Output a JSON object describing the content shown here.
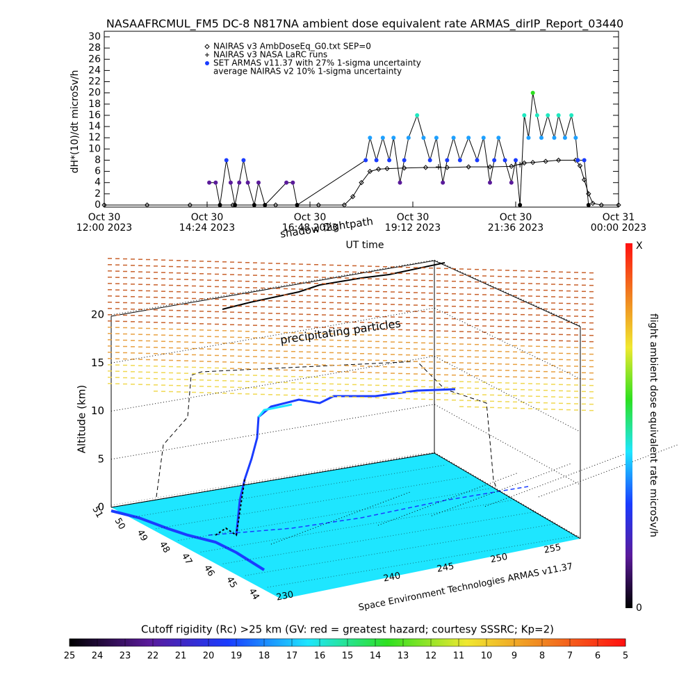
{
  "title": "NASAAFRCMUL_FM5 DC-8   N817NA ambient dose equivalent rate ARMAS_dirIP_Report_03440",
  "chart_data": [
    {
      "type": "scatter",
      "ylabel": "dH*(10)/dt microSv/h",
      "xlabel": "UT time",
      "xlim": [
        0,
        12
      ],
      "xticks": [
        {
          "value": 0,
          "label": "Oct 30\n12:00 2023"
        },
        {
          "value": 2.4,
          "label": "Oct 30\n14:24 2023"
        },
        {
          "value": 4.8,
          "label": "Oct 30\n16:48 2023"
        },
        {
          "value": 7.2,
          "label": "Oct 30\n19:12 2023"
        },
        {
          "value": 9.6,
          "label": "Oct 30\n21:36 2023"
        },
        {
          "value": 12,
          "label": "Oct 31\n00:00 2023"
        }
      ],
      "ylim": [
        0,
        30
      ],
      "yticks": [
        0,
        2,
        4,
        6,
        8,
        10,
        12,
        14,
        16,
        18,
        20,
        22,
        24,
        26,
        28,
        30
      ],
      "series": [
        {
          "name": "NAIRAS v3 AmbDoseEq_G0.txt SEP=0",
          "color": "#000000",
          "marker": "diamond",
          "x": [
            0,
            1,
            2,
            3,
            4,
            5,
            5.6,
            5.8,
            6.0,
            6.2,
            6.4,
            6.6,
            7,
            7.5,
            8,
            8.5,
            9,
            9.5,
            9.8,
            10,
            10.3,
            10.6,
            11,
            11.1,
            11.2,
            11.3,
            11.4,
            11.6,
            12
          ],
          "values": [
            0,
            0,
            0,
            0,
            0,
            0,
            0,
            1.5,
            4,
            6,
            6.4,
            6.5,
            6.6,
            6.7,
            6.7,
            6.8,
            6.8,
            6.9,
            7.5,
            7.6,
            7.8,
            8,
            8,
            7,
            4.5,
            2,
            0.3,
            0,
            0
          ]
        },
        {
          "name": "NAIRAS v3 NASA LaRC runs",
          "color": "#000000",
          "marker": "plus",
          "x": [
            7.8,
            9.7
          ],
          "values": [
            6.8,
            7.2
          ]
        },
        {
          "name": "SET ARMAS v11.37 with 27% 1-sigma uncertainty",
          "color": "#1a3cff",
          "marker": "dot",
          "x": [
            2.45,
            2.6,
            2.7,
            2.85,
            2.95,
            3.05,
            3.15,
            3.25,
            3.35,
            3.5,
            3.6,
            3.75,
            4.25,
            4.4,
            4.5,
            6.1,
            6.2,
            6.35,
            6.5,
            6.65,
            6.75,
            6.9,
            7.0,
            7.1,
            7.3,
            7.45,
            7.6,
            7.75,
            7.9,
            8.0,
            8.15,
            8.3,
            8.5,
            8.7,
            8.85,
            9.0,
            9.1,
            9.2,
            9.35,
            9.5,
            9.6,
            9.7,
            9.8,
            9.9,
            10.0,
            10.1,
            10.2,
            10.35,
            10.5,
            10.6,
            10.75,
            10.9,
            11.0,
            11.05,
            11.2,
            11.3
          ],
          "values": [
            4,
            4,
            0,
            8,
            4,
            0,
            4,
            8,
            4,
            0,
            4,
            0,
            4,
            4,
            0,
            8,
            12,
            8,
            12,
            8,
            12,
            4,
            8,
            12,
            16,
            12,
            8,
            12,
            4,
            8,
            12,
            8,
            12,
            8,
            12,
            4,
            8,
            12,
            8,
            4,
            8,
            0,
            16,
            12,
            20,
            16,
            12,
            16,
            12,
            16,
            12,
            16,
            12,
            8,
            8,
            0
          ],
          "point_colors": [
            "#5a1a9a",
            "#5a1a9a",
            "#000000",
            "#1a3cff",
            "#5a1a9a",
            "#000000",
            "#5a1a9a",
            "#1a3cff",
            "#5a1a9a",
            "#000000",
            "#5a1a9a",
            "#000000",
            "#5a1a9a",
            "#5a1a9a",
            "#000000",
            "#1a3cff",
            "#1ea0ff",
            "#1a3cff",
            "#1ea0ff",
            "#1a3cff",
            "#1ea0ff",
            "#5a1a9a",
            "#1a3cff",
            "#1ea0ff",
            "#1ee8c0",
            "#1ea0ff",
            "#1a3cff",
            "#1ea0ff",
            "#5a1a9a",
            "#1a3cff",
            "#1ea0ff",
            "#1a3cff",
            "#1ea0ff",
            "#1a3cff",
            "#1ea0ff",
            "#5a1a9a",
            "#1a3cff",
            "#1ea0ff",
            "#1a3cff",
            "#5a1a9a",
            "#1a3cff",
            "#000000",
            "#1ee8c0",
            "#1ea0ff",
            "#2ee020",
            "#1ee8c0",
            "#1ea0ff",
            "#1ee8c0",
            "#1ea0ff",
            "#1ee8c0",
            "#1ea0ff",
            "#1ee8c0",
            "#1ea0ff",
            "#1a3cff",
            "#1a3cff",
            "#000000"
          ]
        },
        {
          "name": "average NAIRAS v2 10% 1-sigma uncertainty",
          "color": "#000000",
          "marker": "none",
          "x": [],
          "values": []
        }
      ]
    },
    {
      "type": "surface3d",
      "annotations": [
        "shadow flightpath",
        "precipitating particles"
      ],
      "zlabel": "Altitude (km)",
      "zlim": [
        0,
        20
      ],
      "zticks": [
        0,
        5,
        10,
        15,
        20
      ],
      "xlim": [
        230,
        255
      ],
      "xticks": [
        230,
        240,
        245,
        250,
        255
      ],
      "ylim": [
        51,
        44
      ],
      "yticks": [
        51,
        50,
        49,
        48,
        47,
        46,
        45,
        44
      ],
      "footer": "Space Environment Technologies ARMAS v11.37"
    },
    {
      "type": "colorbar",
      "label": "flight ambient dose equivalent rate microSv/h",
      "tick_labels": [
        "0",
        "X"
      ],
      "colors": [
        "#000000",
        "#5a1a9a",
        "#1a3cff",
        "#1ee6ff",
        "#2ee020",
        "#f0e830",
        "#f08020",
        "#ff1010"
      ]
    },
    {
      "type": "colorbar",
      "title": "Cutoff rigidity (Rc) >25 km (GV: red = greatest hazard; courtesy SSSRC; Kp=2)",
      "xlim": [
        25,
        5
      ],
      "xticks": [
        25,
        24,
        23,
        22,
        21,
        20,
        19,
        18,
        17,
        16,
        15,
        14,
        13,
        12,
        11,
        10,
        9,
        8,
        7,
        6,
        5
      ],
      "colors": [
        "#000000",
        "#5a1a9a",
        "#1a3cff",
        "#1ee6ff",
        "#2ee020",
        "#f0e830",
        "#f08020",
        "#ff1010"
      ]
    }
  ]
}
